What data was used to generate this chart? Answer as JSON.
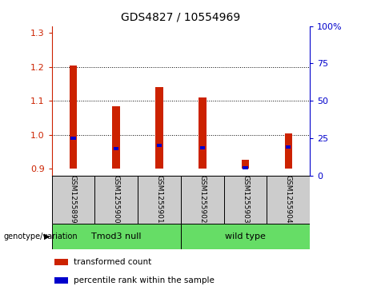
{
  "title": "GDS4827 / 10554969",
  "categories": [
    "GSM1255899",
    "GSM1255900",
    "GSM1255901",
    "GSM1255902",
    "GSM1255903",
    "GSM1255904"
  ],
  "red_values": [
    1.205,
    1.085,
    1.14,
    1.11,
    0.925,
    1.005
  ],
  "blue_values": [
    25.0,
    18.0,
    20.0,
    18.5,
    5.0,
    19.0
  ],
  "ylim_left": [
    0.88,
    1.32
  ],
  "ylim_right": [
    0,
    100
  ],
  "left_ticks": [
    0.9,
    1.0,
    1.1,
    1.2,
    1.3
  ],
  "right_ticks": [
    0,
    25,
    50,
    75,
    100
  ],
  "group_row_label": "genotype/variation",
  "legend_items": [
    {
      "color": "#cc2200",
      "label": "transformed count"
    },
    {
      "color": "#0000cc",
      "label": "percentile rank within the sample"
    }
  ],
  "bar_width": 0.18,
  "bar_color": "#cc2200",
  "blue_bar_color": "#0000cc",
  "left_tick_color": "#cc2200",
  "right_tick_color": "#0000cc",
  "baseline": 0.9,
  "group_bounds": [
    [
      0,
      2,
      "Tmod3 null"
    ],
    [
      3,
      5,
      "wild type"
    ]
  ],
  "green_color": "#66dd66",
  "gray_color": "#cccccc"
}
